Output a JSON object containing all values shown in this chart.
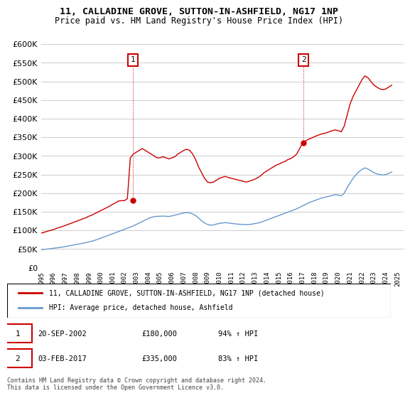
{
  "title_line1": "11, CALLADINE GROVE, SUTTON-IN-ASHFIELD, NG17 1NP",
  "title_line2": "Price paid vs. HM Land Registry's House Price Index (HPI)",
  "legend_label1": "11, CALLADINE GROVE, SUTTON-IN-ASHFIELD, NG17 1NP (detached house)",
  "legend_label2": "HPI: Average price, detached house, Ashfield",
  "footnote": "Contains HM Land Registry data © Crown copyright and database right 2024.\nThis data is licensed under the Open Government Licence v3.0.",
  "transaction1_label": "1",
  "transaction1_date": "20-SEP-2002",
  "transaction1_price": "£180,000",
  "transaction1_hpi": "94% ↑ HPI",
  "transaction2_label": "2",
  "transaction2_date": "03-FEB-2017",
  "transaction2_price": "£335,000",
  "transaction2_hpi": "83% ↑ HPI",
  "red_color": "#cc0000",
  "blue_color": "#6699cc",
  "ylim": [
    0,
    620000
  ],
  "yticks": [
    0,
    50000,
    100000,
    150000,
    200000,
    250000,
    300000,
    350000,
    400000,
    450000,
    500000,
    550000,
    600000
  ],
  "xlim_start": 1995.0,
  "xlim_end": 2025.5,
  "red_hpi_x": [
    1995.0,
    1995.25,
    1995.5,
    1995.75,
    1996.0,
    1996.25,
    1996.5,
    1996.75,
    1997.0,
    1997.25,
    1997.5,
    1997.75,
    1998.0,
    1998.25,
    1998.5,
    1998.75,
    1999.0,
    1999.25,
    1999.5,
    1999.75,
    2000.0,
    2000.25,
    2000.5,
    2000.75,
    2001.0,
    2001.25,
    2001.5,
    2001.75,
    2002.0,
    2002.25,
    2002.5,
    2002.75,
    2003.0,
    2003.25,
    2003.5,
    2003.75,
    2004.0,
    2004.25,
    2004.5,
    2004.75,
    2005.0,
    2005.25,
    2005.5,
    2005.75,
    2006.0,
    2006.25,
    2006.5,
    2006.75,
    2007.0,
    2007.25,
    2007.5,
    2007.75,
    2008.0,
    2008.25,
    2008.5,
    2008.75,
    2009.0,
    2009.25,
    2009.5,
    2009.75,
    2010.0,
    2010.25,
    2010.5,
    2010.75,
    2011.0,
    2011.25,
    2011.5,
    2011.75,
    2012.0,
    2012.25,
    2012.5,
    2012.75,
    2013.0,
    2013.25,
    2013.5,
    2013.75,
    2014.0,
    2014.25,
    2014.5,
    2014.75,
    2015.0,
    2015.25,
    2015.5,
    2015.75,
    2016.0,
    2016.25,
    2016.5,
    2016.75,
    2017.0,
    2017.25,
    2017.5,
    2017.75,
    2018.0,
    2018.25,
    2018.5,
    2018.75,
    2019.0,
    2019.25,
    2019.5,
    2019.75,
    2020.0,
    2020.25,
    2020.5,
    2020.75,
    2021.0,
    2021.25,
    2021.5,
    2021.75,
    2022.0,
    2022.25,
    2022.5,
    2022.75,
    2023.0,
    2023.25,
    2023.5,
    2023.75,
    2024.0,
    2024.25,
    2024.5
  ],
  "red_hpi_y": [
    92749,
    95000,
    97500,
    100000,
    102000,
    105000,
    108000,
    110000,
    113000,
    116000,
    119000,
    122000,
    125000,
    128000,
    131000,
    134000,
    138000,
    141000,
    145000,
    149000,
    153000,
    157000,
    161000,
    165000,
    170000,
    174000,
    179000,
    180000,
    180000,
    185000,
    295000,
    305000,
    310000,
    315000,
    320000,
    315000,
    310000,
    305000,
    300000,
    295000,
    295000,
    298000,
    295000,
    292000,
    295000,
    298000,
    305000,
    310000,
    315000,
    318000,
    315000,
    305000,
    290000,
    270000,
    255000,
    240000,
    230000,
    228000,
    230000,
    235000,
    240000,
    243000,
    245000,
    242000,
    240000,
    238000,
    236000,
    234000,
    232000,
    230000,
    232000,
    235000,
    238000,
    242000,
    248000,
    255000,
    260000,
    265000,
    270000,
    275000,
    278000,
    282000,
    285000,
    290000,
    293000,
    298000,
    305000,
    320000,
    335000,
    340000,
    345000,
    348000,
    352000,
    355000,
    358000,
    360000,
    362000,
    365000,
    368000,
    370000,
    368000,
    365000,
    380000,
    410000,
    440000,
    460000,
    475000,
    490000,
    505000,
    515000,
    510000,
    500000,
    490000,
    485000,
    480000,
    478000,
    480000,
    485000,
    490000
  ],
  "blue_hpi_x": [
    1995.0,
    1995.25,
    1995.5,
    1995.75,
    1996.0,
    1996.25,
    1996.5,
    1996.75,
    1997.0,
    1997.25,
    1997.5,
    1997.75,
    1998.0,
    1998.25,
    1998.5,
    1998.75,
    1999.0,
    1999.25,
    1999.5,
    1999.75,
    2000.0,
    2000.25,
    2000.5,
    2000.75,
    2001.0,
    2001.25,
    2001.5,
    2001.75,
    2002.0,
    2002.25,
    2002.5,
    2002.75,
    2003.0,
    2003.25,
    2003.5,
    2003.75,
    2004.0,
    2004.25,
    2004.5,
    2004.75,
    2005.0,
    2005.25,
    2005.5,
    2005.75,
    2006.0,
    2006.25,
    2006.5,
    2006.75,
    2007.0,
    2007.25,
    2007.5,
    2007.75,
    2008.0,
    2008.25,
    2008.5,
    2008.75,
    2009.0,
    2009.25,
    2009.5,
    2009.75,
    2010.0,
    2010.25,
    2010.5,
    2010.75,
    2011.0,
    2011.25,
    2011.5,
    2011.75,
    2012.0,
    2012.25,
    2012.5,
    2012.75,
    2013.0,
    2013.25,
    2013.5,
    2013.75,
    2014.0,
    2014.25,
    2014.5,
    2014.75,
    2015.0,
    2015.25,
    2015.5,
    2015.75,
    2016.0,
    2016.25,
    2016.5,
    2016.75,
    2017.0,
    2017.25,
    2017.5,
    2017.75,
    2018.0,
    2018.25,
    2018.5,
    2018.75,
    2019.0,
    2019.25,
    2019.5,
    2019.75,
    2020.0,
    2020.25,
    2020.5,
    2020.75,
    2021.0,
    2021.25,
    2021.5,
    2021.75,
    2022.0,
    2022.25,
    2022.5,
    2022.75,
    2023.0,
    2023.25,
    2023.5,
    2023.75,
    2024.0,
    2024.25,
    2024.5
  ],
  "blue_hpi_y": [
    48000,
    49000,
    50000,
    51000,
    52000,
    53000,
    54000,
    55000,
    56500,
    58000,
    59500,
    61000,
    62500,
    64000,
    65500,
    67000,
    69000,
    71000,
    73500,
    76000,
    79000,
    82000,
    85000,
    88000,
    91000,
    94000,
    97000,
    100000,
    103000,
    106000,
    109000,
    112000,
    116000,
    120000,
    124000,
    128000,
    132000,
    135000,
    137000,
    138000,
    138000,
    138500,
    138000,
    137500,
    139000,
    141000,
    143000,
    145000,
    147000,
    148000,
    147000,
    144000,
    140000,
    133000,
    126000,
    120000,
    116000,
    114000,
    115000,
    117000,
    119000,
    120000,
    121000,
    120000,
    119000,
    118000,
    117000,
    116500,
    116000,
    115500,
    116000,
    117000,
    118500,
    120000,
    122000,
    125000,
    128000,
    131000,
    134000,
    137000,
    140000,
    143000,
    146000,
    149000,
    152000,
    155000,
    158000,
    162000,
    166000,
    170000,
    174000,
    177000,
    180000,
    183000,
    186000,
    188000,
    190000,
    192000,
    194000,
    196000,
    195000,
    193000,
    200000,
    215000,
    228000,
    240000,
    250000,
    258000,
    264000,
    268000,
    265000,
    260000,
    255000,
    252000,
    250000,
    249000,
    250000,
    253000,
    257000
  ],
  "marker1_x": 2002.72,
  "marker1_y": 180000,
  "marker2_x": 2017.08,
  "marker2_y": 335000
}
